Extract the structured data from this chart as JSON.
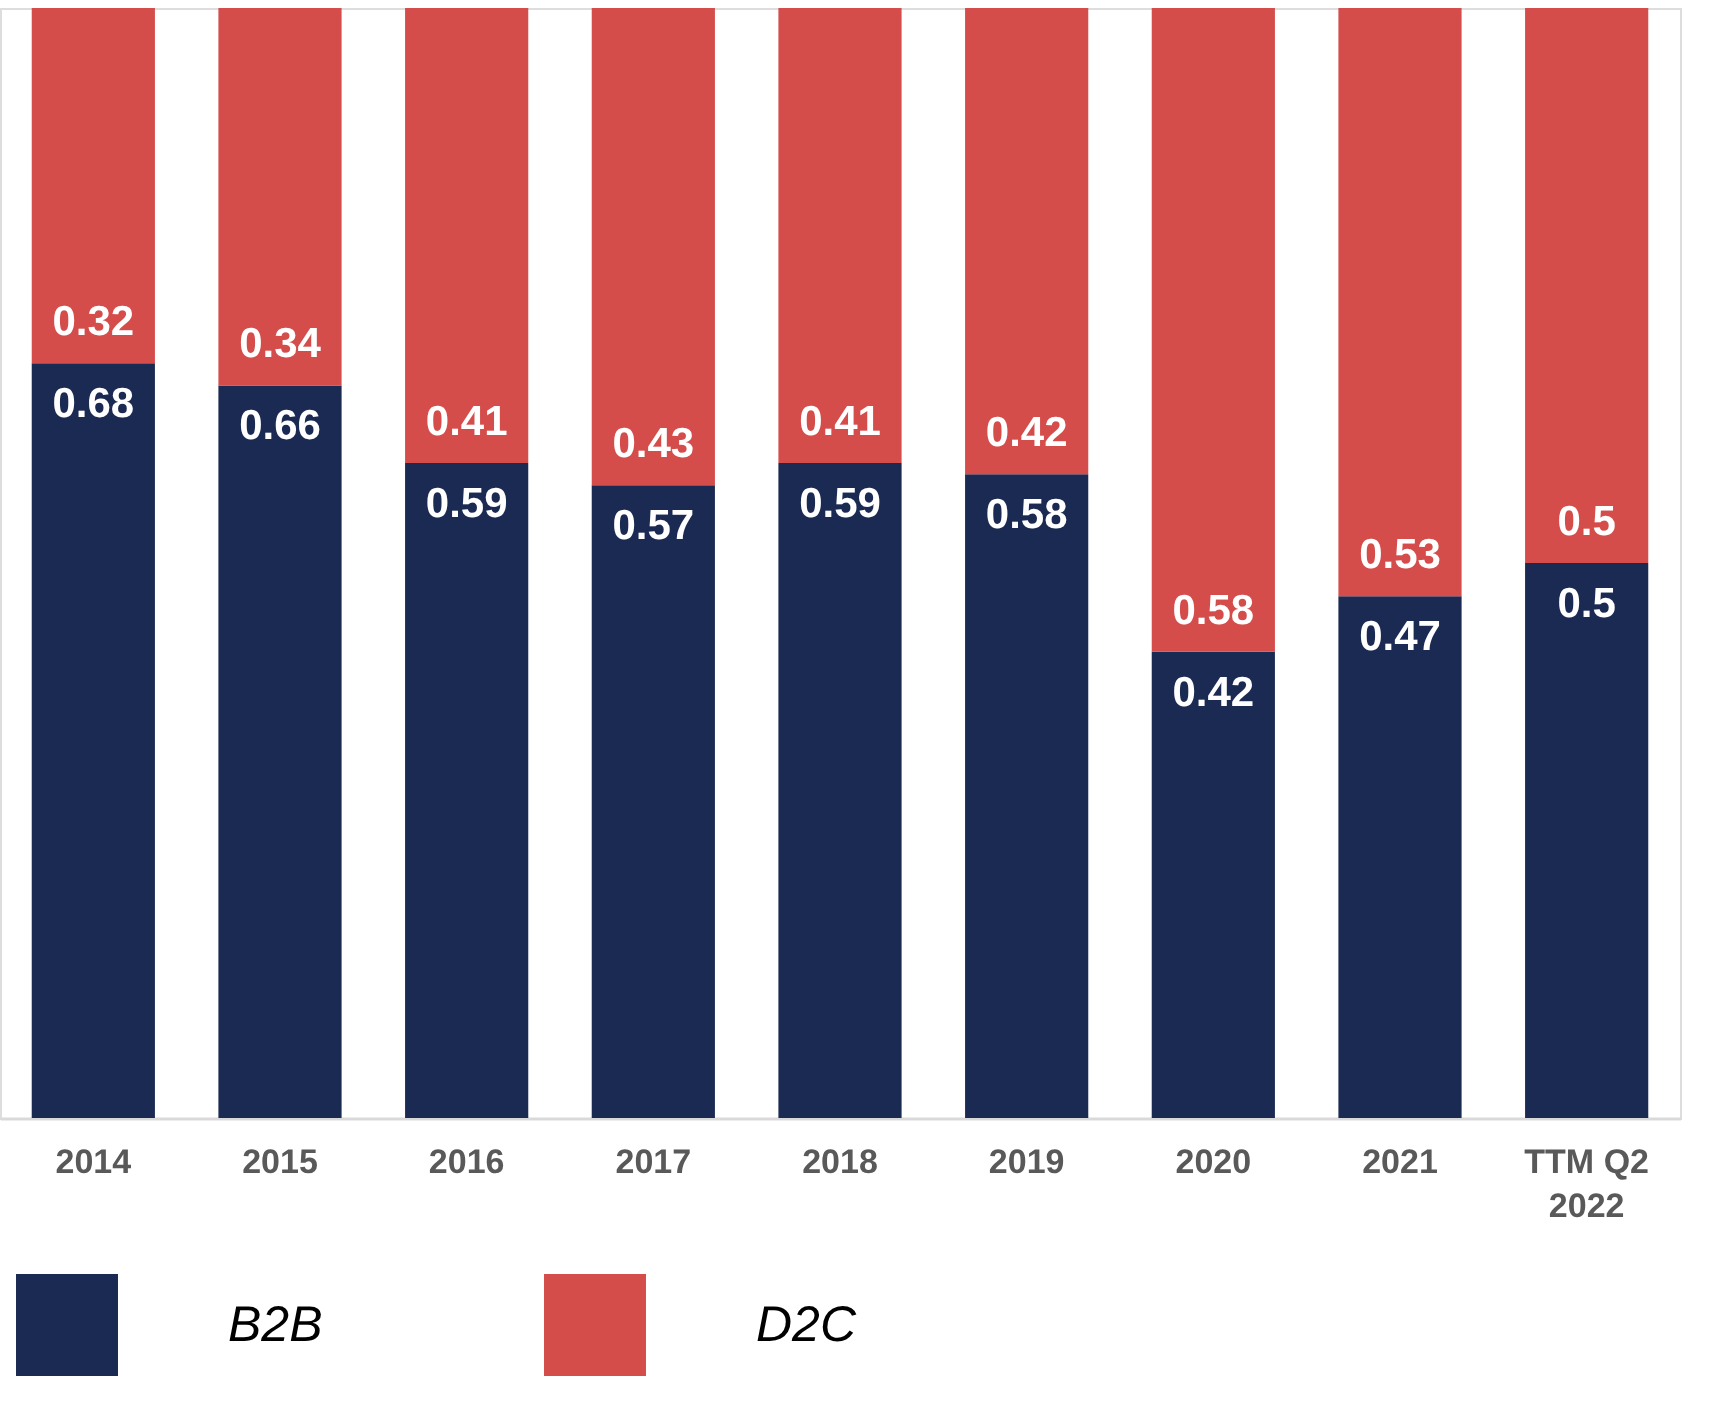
{
  "chart_data": {
    "type": "bar",
    "stacked": true,
    "categories": [
      "2014",
      "2015",
      "2016",
      "2017",
      "2018",
      "2019",
      "2020",
      "2021",
      "TTM Q2\n2022"
    ],
    "series": [
      {
        "name": "B2B",
        "color": "#1b2a52",
        "values": [
          0.68,
          0.66,
          0.59,
          0.57,
          0.59,
          0.58,
          0.42,
          0.47,
          0.5
        ]
      },
      {
        "name": "D2C",
        "color": "#d44d4b",
        "values": [
          0.32,
          0.34,
          0.41,
          0.43,
          0.41,
          0.42,
          0.58,
          0.53,
          0.5
        ]
      }
    ],
    "ylim": [
      0,
      1
    ],
    "data_labels": true,
    "tick_labels": "x",
    "legend": "bottom"
  }
}
